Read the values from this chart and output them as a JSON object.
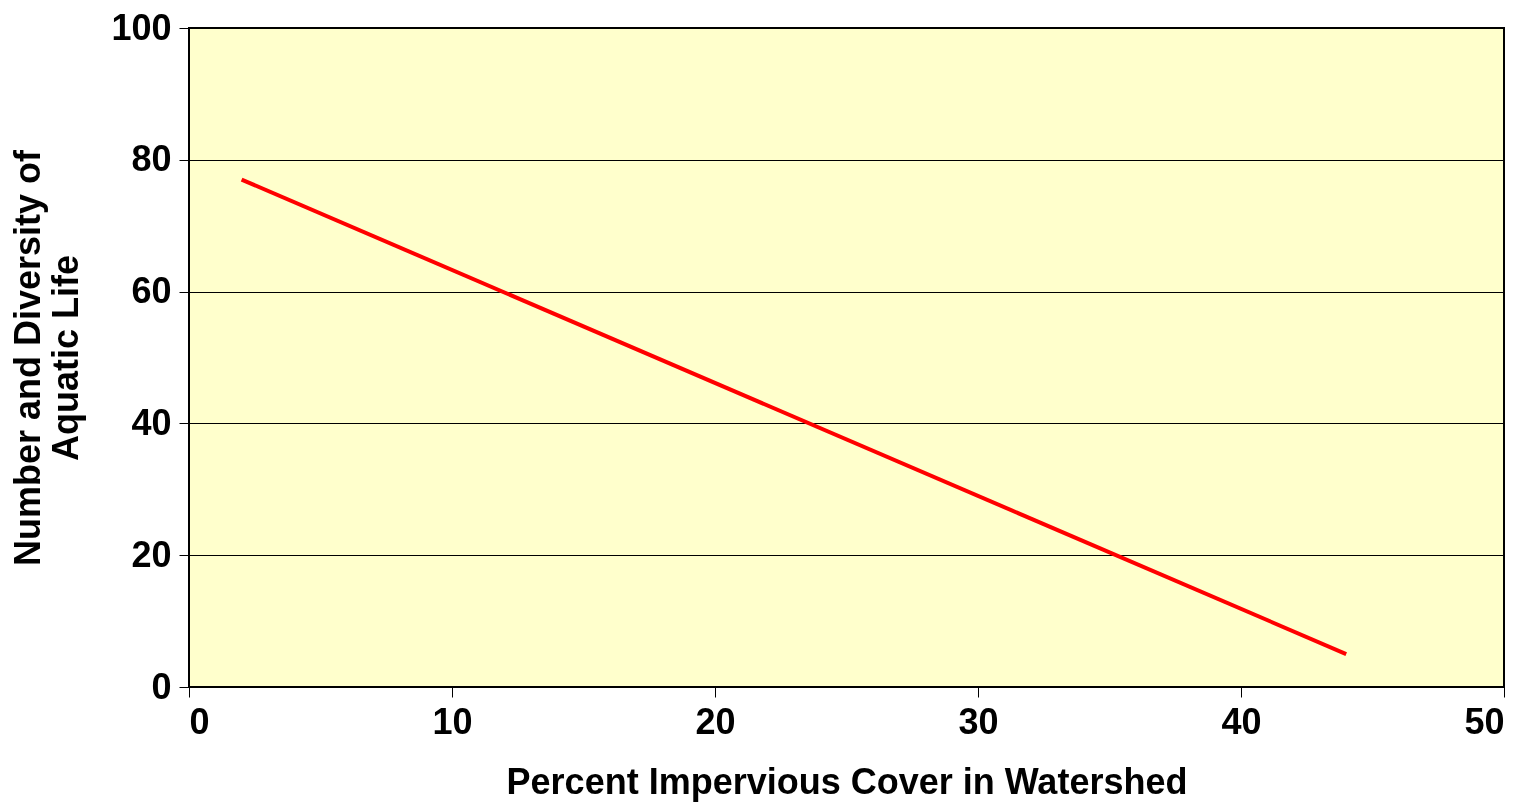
{
  "chart_data": {
    "type": "line",
    "xlabel": "Percent Impervious Cover in Watershed",
    "ylabel": "Number and Diversity of\nAquatic Life",
    "x": [
      2,
      44
    ],
    "series": [
      {
        "color": "#ff0000",
        "values": [
          77,
          5
        ]
      }
    ],
    "xlim": [
      0,
      50
    ],
    "xticks": [
      0,
      10,
      20,
      30,
      40,
      50
    ],
    "ylim": [
      0,
      100
    ],
    "yticks": [
      0,
      20,
      40,
      60,
      80,
      100
    ],
    "grid": "y",
    "legend": false,
    "marker": "none",
    "line_style": "solid"
  }
}
